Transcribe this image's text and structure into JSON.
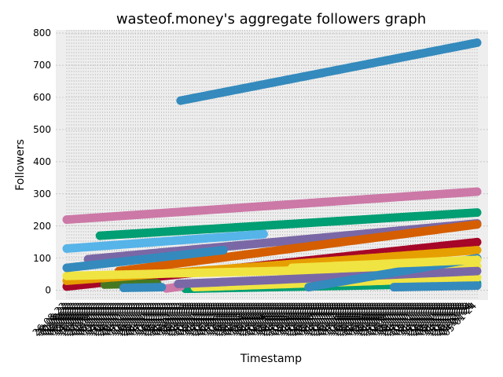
{
  "chart_data": {
    "type": "scatter",
    "title": "wasteof.money's aggregate followers graph",
    "xlabel": "Timestamp",
    "ylabel": "Followers",
    "ylim": [
      -30,
      810
    ],
    "yticks": [
      0,
      100,
      200,
      300,
      400,
      500,
      600,
      700,
      800
    ],
    "grid": true,
    "categories": [
      "26-08-22",
      "29-08-22",
      "30-08-22",
      "01-09-22",
      "02-09-22",
      "05-09-22",
      "06-09-22",
      "08-09-22",
      "12-09-22",
      "14-09-22",
      "15-09-22",
      "19-09-22",
      "21-09-22",
      "23-09-22",
      "27-09-22",
      "29-09-22",
      "01-10-22",
      "03-10-22",
      "05-10-22",
      "07-10-22",
      "09-10-22",
      "12-10-22",
      "14-10-22",
      "17-10-22",
      "19-10-22",
      "22-10-22",
      "24-10-22",
      "26-10-22",
      "29-10-22",
      "01-11-22",
      "04-11-22",
      "07-11-22",
      "10-11-22",
      "13-11-22",
      "16-11-22",
      "19-11-22",
      "22-11-22",
      "25-11-22",
      "28-11-22",
      "01-12-22",
      "04-12-22",
      "07-12-22",
      "10-12-22",
      "13-12-22",
      "16-12-22",
      "19-12-22",
      "22-12-22",
      "25-12-22",
      "28-12-22",
      "31-12-22",
      "03-01-23",
      "06-01-23",
      "09-01-23",
      "12-01-23",
      "15-01-23",
      "18-01-23",
      "21-01-23",
      "24-01-23",
      "27-01-23",
      "30-01-23",
      "02-02-23",
      "05-02-23",
      "08-02-23",
      "11-02-23",
      "14-02-23",
      "17-02-23",
      "20-02-23",
      "23-02-23",
      "26-02-23",
      "01-03-23",
      "04-03-23",
      "07-03-23",
      "10-03-23",
      "13-03-23",
      "16-03-23",
      "19-03-23",
      "22-03-23",
      "25-03-23",
      "28-03-23",
      "31-03-23",
      "03-04-23",
      "06-04-23",
      "09-04-23",
      "12-04-23",
      "15-04-23",
      "18-04-23",
      "21-04-23",
      "24-04-23",
      "27-04-23",
      "30-04-23",
      "03-05-23",
      "06-05-23",
      "09-05-23",
      "12-05-23",
      "15-05-23",
      "18-05-23",
      "21-05-23",
      "24-05-23",
      "27-05-23",
      "30-05-23",
      "02-06-23",
      "05-06-23",
      "08-06-23",
      "11-06-23",
      "14-06-23",
      "17-06-23",
      "20-06-23",
      "23-06-23",
      "26-06-23",
      "29-06-23",
      "02-07-23",
      "05-07-23",
      "08-07-23",
      "11-07-23",
      "14-07-23",
      "17-07-23",
      "20-07-23",
      "23-07-23",
      "26-07-23",
      "29-07-23",
      "01-08-23",
      "04-08-23",
      "07-08-23",
      "10-08-23",
      "13-08-23",
      "16-08-23",
      "19-08-23",
      "22-08-23",
      "25-08-23",
      "28-08-23",
      "31-08-23",
      "03-09-23",
      "06-09-23",
      "09-09-23",
      "12-09-23",
      "15-09-23",
      "18-09-23",
      "21-09-23",
      "24-09-23",
      "27-09-23",
      "30-09-23",
      "03-10-23",
      "06-10-23",
      "09-10-23",
      "12-10-23",
      "15-10-23",
      "18-10-23",
      "21-10-23",
      "24-10-23",
      "27-10-23",
      "30-10-23",
      "02-11-23",
      "05-11-23",
      "08-11-23",
      "11-11-23",
      "14-11-23",
      "17-11-23",
      "20-11-23",
      "23-11-23",
      "26-11-23",
      "29-11-23",
      "02-12-23",
      "05-12-23",
      "08-12-23",
      "11-12-23",
      "14-12-23",
      "17-12-23",
      "20-12-23",
      "23-12-23",
      "26-12-23",
      "29-12-23",
      "01-01-24",
      "04-01-24",
      "05-01-24"
    ],
    "series": [
      {
        "color": "#348ABD",
        "start": 0.28,
        "end": 1.0,
        "y0": 590,
        "y1": 770
      },
      {
        "color": "#CC79A7",
        "start": 0.0,
        "end": 1.0,
        "y0": 220,
        "y1": 307
      },
      {
        "color": "#009E73",
        "start": 0.08,
        "end": 1.0,
        "y0": 170,
        "y1": 242
      },
      {
        "color": "#7A68A6",
        "start": 0.05,
        "end": 1.0,
        "y0": 97,
        "y1": 208
      },
      {
        "color": "#D55E00",
        "start": 0.13,
        "end": 1.0,
        "y0": 60,
        "y1": 205
      },
      {
        "color": "#56B4E9",
        "start": 0.0,
        "end": 0.48,
        "y0": 130,
        "y1": 175
      },
      {
        "color": "#A60628",
        "start": 0.0,
        "end": 1.0,
        "y0": 12,
        "y1": 150
      },
      {
        "color": "#467821",
        "start": 0.09,
        "end": 0.22,
        "y0": 18,
        "y1": 22
      },
      {
        "color": "#E69F00",
        "start": 0.0,
        "end": 1.0,
        "y0": 30,
        "y1": 125
      },
      {
        "color": "#F0E442",
        "start": 0.0,
        "end": 1.0,
        "y0": 45,
        "y1": 75
      },
      {
        "color": "#348ABD",
        "start": 0.0,
        "end": 0.38,
        "y0": 70,
        "y1": 125
      },
      {
        "color": "#009E73",
        "start": 0.29,
        "end": 1.0,
        "y0": 5,
        "y1": 22
      },
      {
        "color": "#CC79A7",
        "start": 0.24,
        "end": 0.28,
        "y0": 6,
        "y1": 12
      },
      {
        "color": "#F0E442",
        "start": 0.31,
        "end": 1.0,
        "y0": 10,
        "y1": 40
      },
      {
        "color": "#7A68A6",
        "start": 0.27,
        "end": 1.0,
        "y0": 20,
        "y1": 60
      },
      {
        "color": "#348ABD",
        "start": 0.59,
        "end": 1.0,
        "y0": 10,
        "y1": 100
      },
      {
        "color": "#348ABD",
        "start": 0.14,
        "end": 0.23,
        "y0": 8,
        "y1": 10
      },
      {
        "color": "#F0E442",
        "start": 0.55,
        "end": 1.0,
        "y0": 70,
        "y1": 95
      },
      {
        "color": "#348ABD",
        "start": 0.8,
        "end": 1.0,
        "y0": 10,
        "y1": 15
      }
    ]
  }
}
